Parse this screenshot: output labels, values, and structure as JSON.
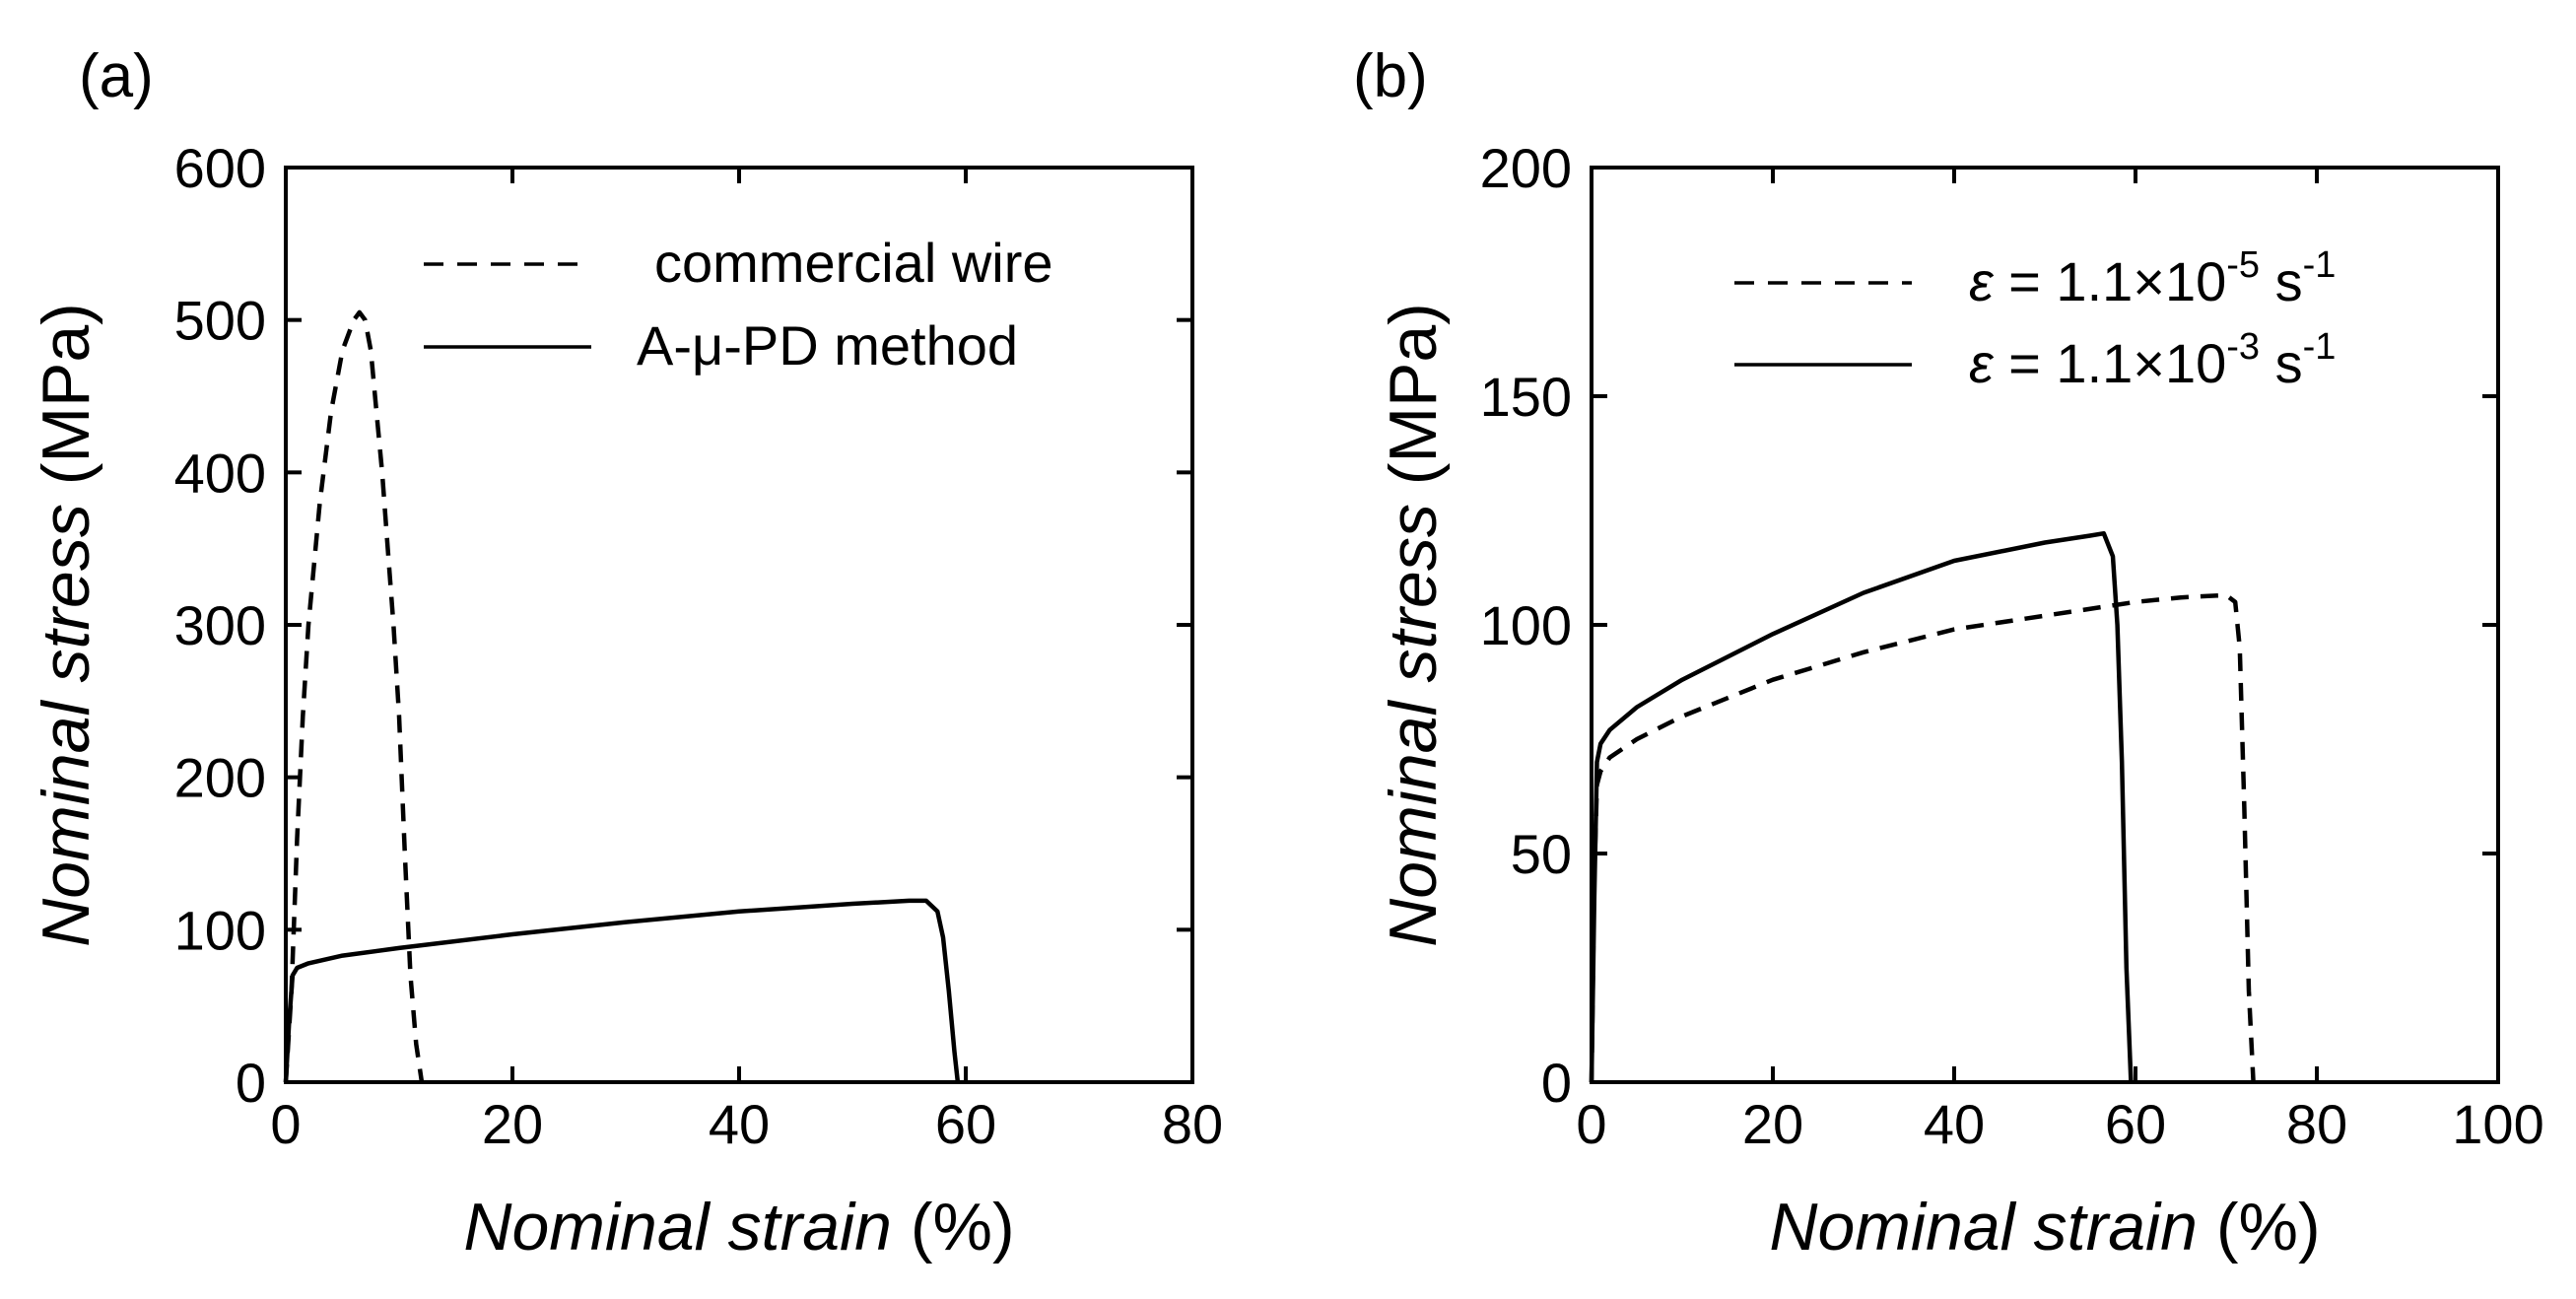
{
  "chart_data": [
    {
      "type": "line",
      "panel_label": "(a)",
      "xlabel": {
        "italic": "Nominal strain",
        "plain": " (%)"
      },
      "ylabel": {
        "italic": "Nominal stress",
        "plain": " (MPa)"
      },
      "xlim": [
        0,
        80
      ],
      "ylim": [
        0,
        600
      ],
      "xticks": [
        0,
        20,
        40,
        60,
        80
      ],
      "yticks": [
        0,
        100,
        200,
        300,
        400,
        500,
        600
      ],
      "grid": false,
      "legend_position": "top-right",
      "series": [
        {
          "name": "commercial wire",
          "style": "dashed",
          "x": [
            0,
            0.5,
            1,
            1.5,
            2,
            3,
            4,
            5,
            6,
            6.5,
            7,
            7.5,
            8,
            8.5,
            9,
            9.5,
            10,
            10.5,
            11,
            11.5,
            12
          ],
          "y": [
            0,
            60,
            160,
            240,
            300,
            380,
            440,
            480,
            500,
            505,
            500,
            480,
            440,
            400,
            350,
            300,
            240,
            150,
            70,
            25,
            0
          ]
        },
        {
          "name": "A-μ-PD method",
          "style": "solid",
          "x": [
            0,
            0.3,
            0.6,
            1,
            2,
            5,
            10,
            20,
            30,
            40,
            50,
            55,
            56.5,
            57.5,
            58,
            58.5,
            59,
            59.3
          ],
          "y": [
            0,
            40,
            70,
            75,
            78,
            83,
            88,
            97,
            105,
            112,
            117,
            119,
            119,
            112,
            95,
            60,
            20,
            0
          ]
        }
      ]
    },
    {
      "type": "line",
      "panel_label": "(b)",
      "xlabel": {
        "italic": "Nominal strain",
        "plain": " (%)"
      },
      "ylabel": {
        "italic": "Nominal stress",
        "plain": " (MPa)"
      },
      "xlim": [
        0,
        100
      ],
      "ylim": [
        0,
        200
      ],
      "xticks": [
        0,
        20,
        40,
        60,
        80,
        100
      ],
      "yticks": [
        0,
        50,
        100,
        150,
        200
      ],
      "grid": false,
      "legend_position": "top-right",
      "series": [
        {
          "name": "ε = 1.1×10-5 s-1",
          "legend": {
            "symbol": "ε",
            "mid": " = 1.1×10",
            "exp1": "-5",
            "unit": " s",
            "exp2": "-1"
          },
          "style": "dashed",
          "x": [
            0,
            0.3,
            0.6,
            1,
            2,
            5,
            10,
            20,
            30,
            40,
            50,
            60,
            65,
            70,
            71,
            71.5,
            72,
            72.5,
            73
          ],
          "y": [
            0,
            45,
            65,
            68,
            71,
            75,
            80,
            88,
            94,
            99,
            102,
            105,
            106,
            106.5,
            105,
            95,
            60,
            20,
            0
          ]
        },
        {
          "name": "ε = 1.1×10-3 s-1",
          "legend": {
            "symbol": "ε",
            "mid": " = 1.1×10",
            "exp1": "-3",
            "unit": " s",
            "exp2": "-1"
          },
          "style": "solid",
          "x": [
            0,
            0.3,
            0.6,
            1,
            2,
            5,
            10,
            20,
            30,
            40,
            50,
            55,
            56.5,
            57.5,
            58,
            58.5,
            59,
            59.5
          ],
          "y": [
            0,
            40,
            70,
            74,
            77,
            82,
            88,
            98,
            107,
            114,
            118,
            119.5,
            120,
            115,
            100,
            70,
            25,
            0
          ]
        }
      ]
    }
  ]
}
